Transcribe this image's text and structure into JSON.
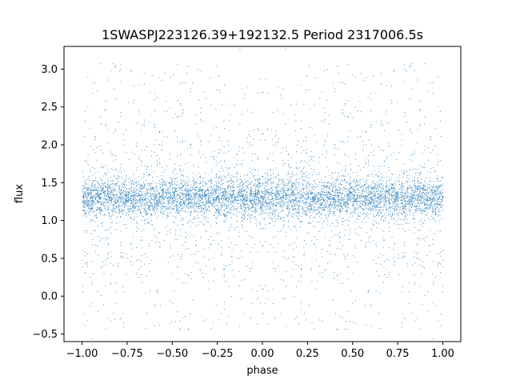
{
  "chart_data": {
    "type": "scatter",
    "title": "1SWASPJ223126.39+192132.5 Period 2317006.5s",
    "xlabel": "phase",
    "ylabel": "flux",
    "xlim": [
      -1.1,
      1.1
    ],
    "ylim": [
      -0.6,
      3.3
    ],
    "x_ticks": [
      -1.0,
      -0.75,
      -0.5,
      -0.25,
      0.0,
      0.25,
      0.5,
      0.75,
      1.0
    ],
    "x_tick_labels": [
      "−1.00",
      "−0.75",
      "−0.50",
      "−0.25",
      "0.00",
      "0.25",
      "0.50",
      "0.75",
      "1.00"
    ],
    "y_ticks": [
      -0.5,
      0.0,
      0.5,
      1.0,
      1.5,
      2.0,
      2.5,
      3.0
    ],
    "y_tick_labels": [
      "−0.5",
      "0.0",
      "0.5",
      "1.0",
      "1.5",
      "2.0",
      "2.5",
      "3.0"
    ],
    "grid": false,
    "legend": false,
    "marker_color": "#1f77b4",
    "series": [
      {
        "phase_range": [
          -1.0,
          1.0
        ],
        "median_flux": 1.3,
        "core_flux_range": [
          1.0,
          1.6
        ],
        "outlier_flux_range": [
          -0.45,
          3.1
        ],
        "symmetric_about_zero": true,
        "points": [
          [
            -1.0,
            1.32
          ],
          [
            -0.98,
            1.25
          ],
          [
            -0.95,
            1.4
          ],
          [
            -0.92,
            1.18
          ],
          [
            -0.9,
            1.35
          ],
          [
            -0.87,
            1.28
          ],
          [
            -0.85,
            1.45
          ],
          [
            -0.82,
            1.22
          ],
          [
            -0.8,
            1.3
          ],
          [
            -0.77,
            1.38
          ],
          [
            -0.75,
            1.27
          ],
          [
            -0.72,
            1.33
          ],
          [
            -0.7,
            1.2
          ],
          [
            -0.67,
            1.42
          ],
          [
            -0.65,
            1.29
          ],
          [
            -0.62,
            1.35
          ],
          [
            -0.6,
            1.24
          ],
          [
            -0.57,
            1.31
          ],
          [
            -0.55,
            1.39
          ],
          [
            -0.52,
            1.26
          ],
          [
            -0.5,
            1.3
          ],
          [
            -0.47,
            1.36
          ],
          [
            -0.45,
            1.21
          ],
          [
            -0.42,
            1.34
          ],
          [
            -0.4,
            1.28
          ],
          [
            -0.37,
            1.41
          ],
          [
            -0.35,
            1.23
          ],
          [
            -0.32,
            1.32
          ],
          [
            -0.3,
            1.37
          ],
          [
            -0.27,
            1.25
          ],
          [
            -0.25,
            1.3
          ],
          [
            -0.22,
            1.43
          ],
          [
            -0.2,
            1.19
          ],
          [
            -0.17,
            1.33
          ],
          [
            -0.15,
            1.27
          ],
          [
            -0.12,
            1.38
          ],
          [
            -0.1,
            1.22
          ],
          [
            -0.07,
            1.31
          ],
          [
            -0.05,
            1.36
          ],
          [
            -0.02,
            1.24
          ],
          [
            0.0,
            1.3
          ],
          [
            0.02,
            1.24
          ],
          [
            0.05,
            1.36
          ],
          [
            0.07,
            1.31
          ],
          [
            0.1,
            1.22
          ],
          [
            0.12,
            1.38
          ],
          [
            0.15,
            1.27
          ],
          [
            0.17,
            1.33
          ],
          [
            0.2,
            1.19
          ],
          [
            0.22,
            1.43
          ],
          [
            0.25,
            1.3
          ],
          [
            0.27,
            1.25
          ],
          [
            0.3,
            1.37
          ],
          [
            0.32,
            1.32
          ],
          [
            0.35,
            1.23
          ],
          [
            0.37,
            1.41
          ],
          [
            0.4,
            1.28
          ],
          [
            0.42,
            1.34
          ],
          [
            0.45,
            1.21
          ],
          [
            0.47,
            1.36
          ],
          [
            0.5,
            1.3
          ],
          [
            0.52,
            1.26
          ],
          [
            0.55,
            1.39
          ],
          [
            0.57,
            1.31
          ],
          [
            0.6,
            1.24
          ],
          [
            0.62,
            1.35
          ],
          [
            0.65,
            1.29
          ],
          [
            0.67,
            1.42
          ],
          [
            0.7,
            1.2
          ],
          [
            0.72,
            1.33
          ],
          [
            0.75,
            1.27
          ],
          [
            0.77,
            1.38
          ],
          [
            0.8,
            1.3
          ],
          [
            0.82,
            1.22
          ],
          [
            0.85,
            1.45
          ],
          [
            0.87,
            1.28
          ],
          [
            0.9,
            1.35
          ],
          [
            0.92,
            1.18
          ],
          [
            0.95,
            1.4
          ],
          [
            0.98,
            1.25
          ],
          [
            1.0,
            1.32
          ],
          [
            -0.97,
            2.9
          ],
          [
            -0.88,
            0.3
          ],
          [
            -0.82,
            3.05
          ],
          [
            -0.65,
            0.05
          ],
          [
            -0.6,
            2.6
          ],
          [
            -0.45,
            0.55
          ],
          [
            -0.42,
            2.95
          ],
          [
            -0.3,
            0.2
          ],
          [
            -0.24,
            2.7
          ],
          [
            -0.2,
            0.4
          ],
          [
            -0.18,
            2.4
          ],
          [
            -0.12,
            0.6
          ],
          [
            -0.05,
            2.2
          ],
          [
            0.05,
            2.2
          ],
          [
            0.12,
            0.6
          ],
          [
            0.18,
            2.4
          ],
          [
            0.2,
            0.4
          ],
          [
            0.24,
            2.7
          ],
          [
            0.3,
            0.2
          ],
          [
            0.42,
            2.95
          ],
          [
            0.45,
            0.55
          ],
          [
            0.6,
            2.6
          ],
          [
            0.65,
            0.05
          ],
          [
            0.82,
            3.05
          ],
          [
            0.88,
            0.3
          ],
          [
            0.97,
            2.9
          ],
          [
            -0.46,
            -0.43
          ],
          [
            0.47,
            -0.43
          ],
          [
            -0.82,
            -0.3
          ],
          [
            0.18,
            -0.3
          ]
        ]
      }
    ]
  }
}
